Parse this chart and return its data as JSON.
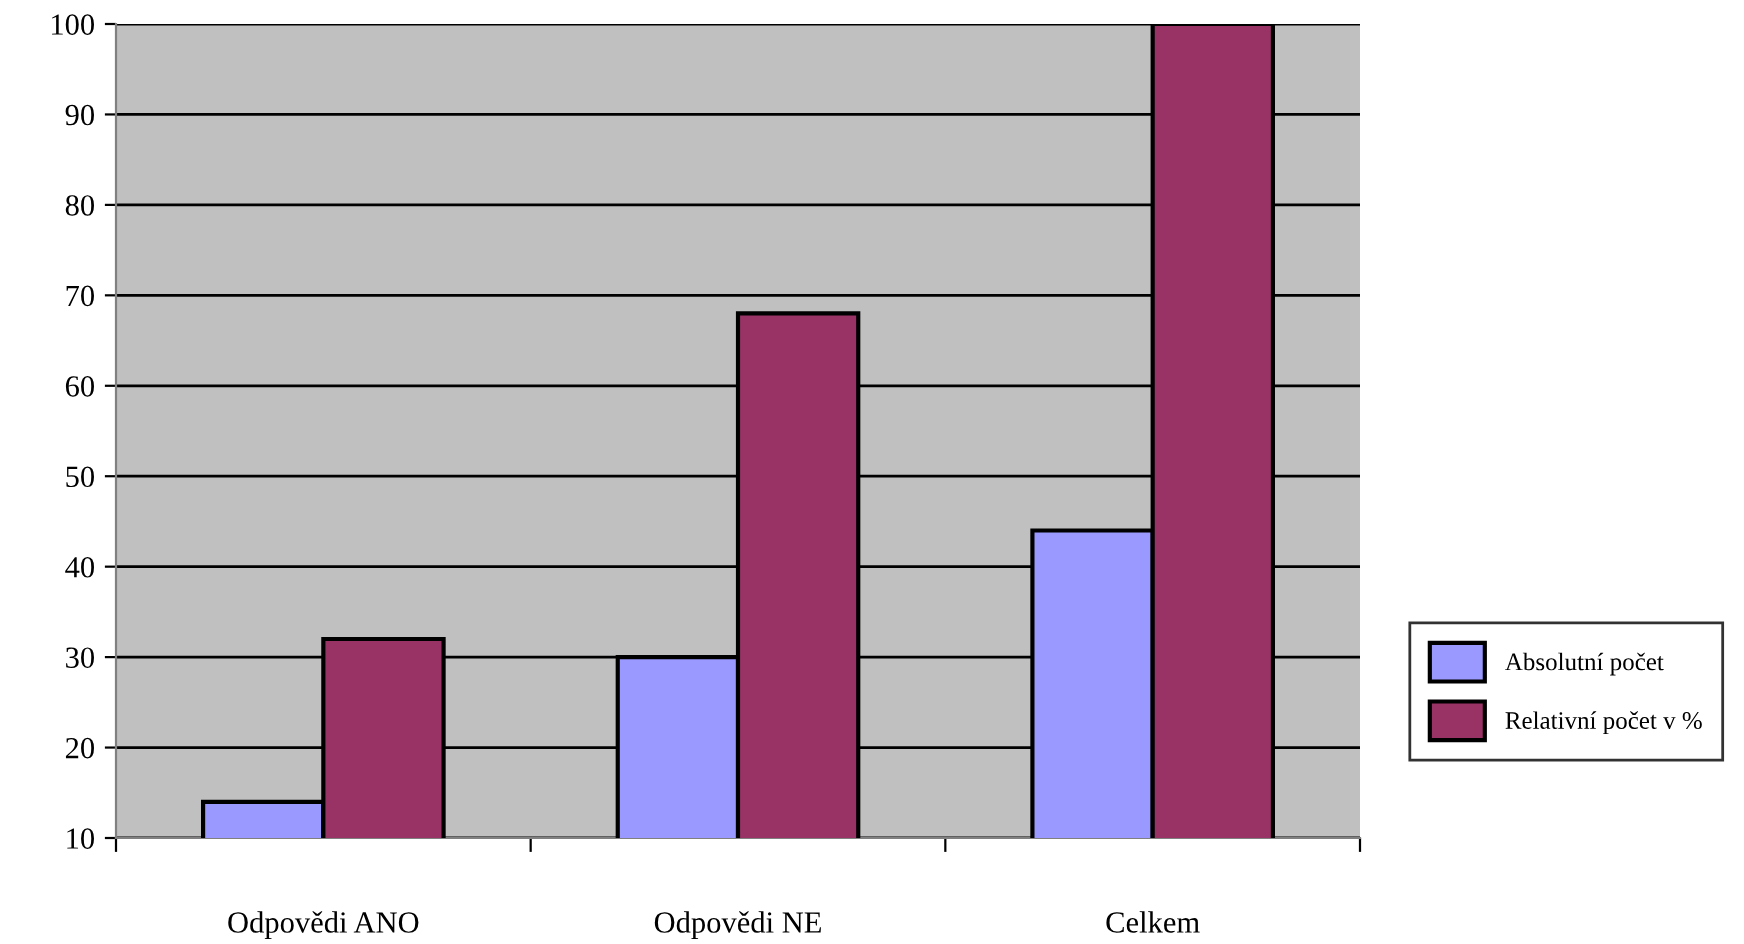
{
  "chart_data": {
    "type": "bar",
    "categories": [
      "Odpovědi ANO",
      "Odpovědi NE",
      "Celkem"
    ],
    "series": [
      {
        "name": "Absolutní počet",
        "color": "#9999ff",
        "values": [
          14,
          30,
          44
        ]
      },
      {
        "name": "Relativní počet v %",
        "color": "#993366",
        "values": [
          32,
          68,
          100
        ]
      }
    ],
    "ylim": [
      10,
      100
    ],
    "yticks": [
      10,
      20,
      30,
      40,
      50,
      60,
      70,
      80,
      90,
      100
    ],
    "grid": "y",
    "legend": "right"
  }
}
